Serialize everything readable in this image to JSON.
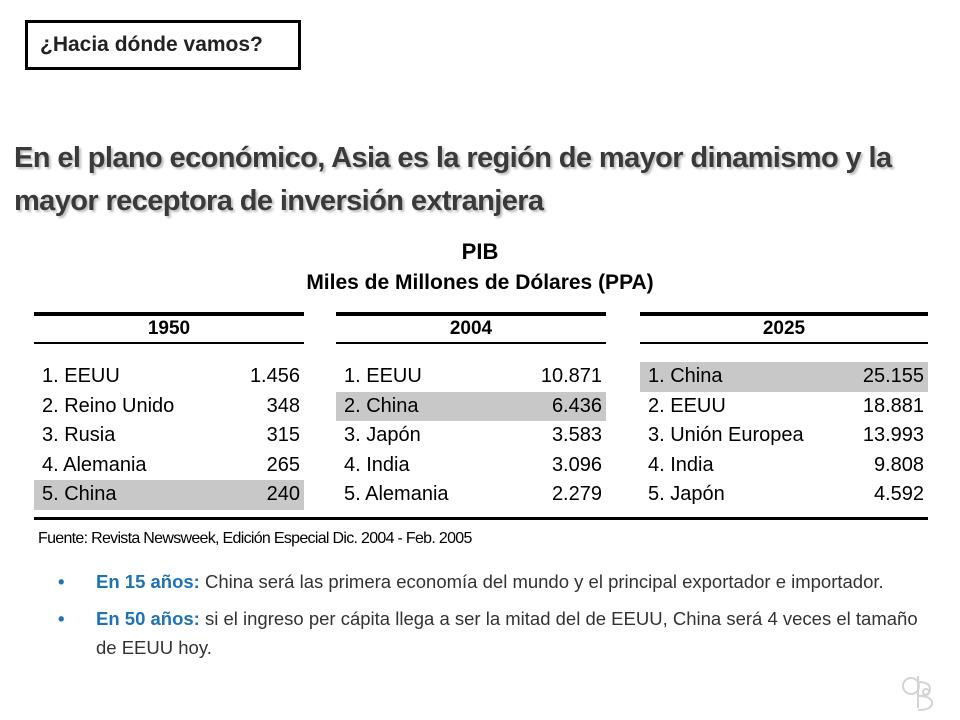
{
  "slide": {
    "title": "¿Hacia dónde vamos?",
    "headline_line1": "En el plano económico, Asia es la región de mayor dinamismo y la",
    "headline_line2": "mayor receptora de inversión extranjera"
  },
  "table": {
    "title": "PIB",
    "subtitle": "Miles de Millones de Dólares (PPA)",
    "columns": [
      {
        "year": "1950",
        "rows": [
          {
            "label": "1. EEUU",
            "value": "1.456"
          },
          {
            "label": "2. Reino Unido",
            "value": "348"
          },
          {
            "label": "3. Rusia",
            "value": "315"
          },
          {
            "label": "4. Alemania",
            "value": "265"
          },
          {
            "label": "5. China",
            "value": "240"
          }
        ]
      },
      {
        "year": "2004",
        "rows": [
          {
            "label": "1. EEUU",
            "value": "10.871"
          },
          {
            "label": "2. China",
            "value": "6.436"
          },
          {
            "label": "3. Japón",
            "value": "3.583"
          },
          {
            "label": "4. India",
            "value": "3.096"
          },
          {
            "label": "5. Alemania",
            "value": "2.279"
          }
        ]
      },
      {
        "year": "2025",
        "rows": [
          {
            "label": "1. China",
            "value": "25.155"
          },
          {
            "label": "2. EEUU",
            "value": "18.881"
          },
          {
            "label": "3. Unión Europea",
            "value": "13.993"
          },
          {
            "label": "4. India",
            "value": "9.808"
          },
          {
            "label": "5. Japón",
            "value": "4.592"
          }
        ]
      }
    ],
    "source": "Fuente: Revista Newsweek, Edición Especial Dic. 2004 - Feb. 2005"
  },
  "bullets": [
    {
      "marker": "•",
      "lead": "En 15 años:",
      "text": " China será las primera economía del mundo y el principal exportador e importador."
    },
    {
      "marker": "•",
      "lead": "En 50 años:",
      "text": " si el ingreso per cápita llega a ser la mitad del de EEUU, China será 4 veces el tamaño de EEUU hoy."
    }
  ],
  "colors": {
    "accent": "#1e73b8",
    "highlight": "#c8c8c8",
    "headline": "#3a3a3a"
  }
}
